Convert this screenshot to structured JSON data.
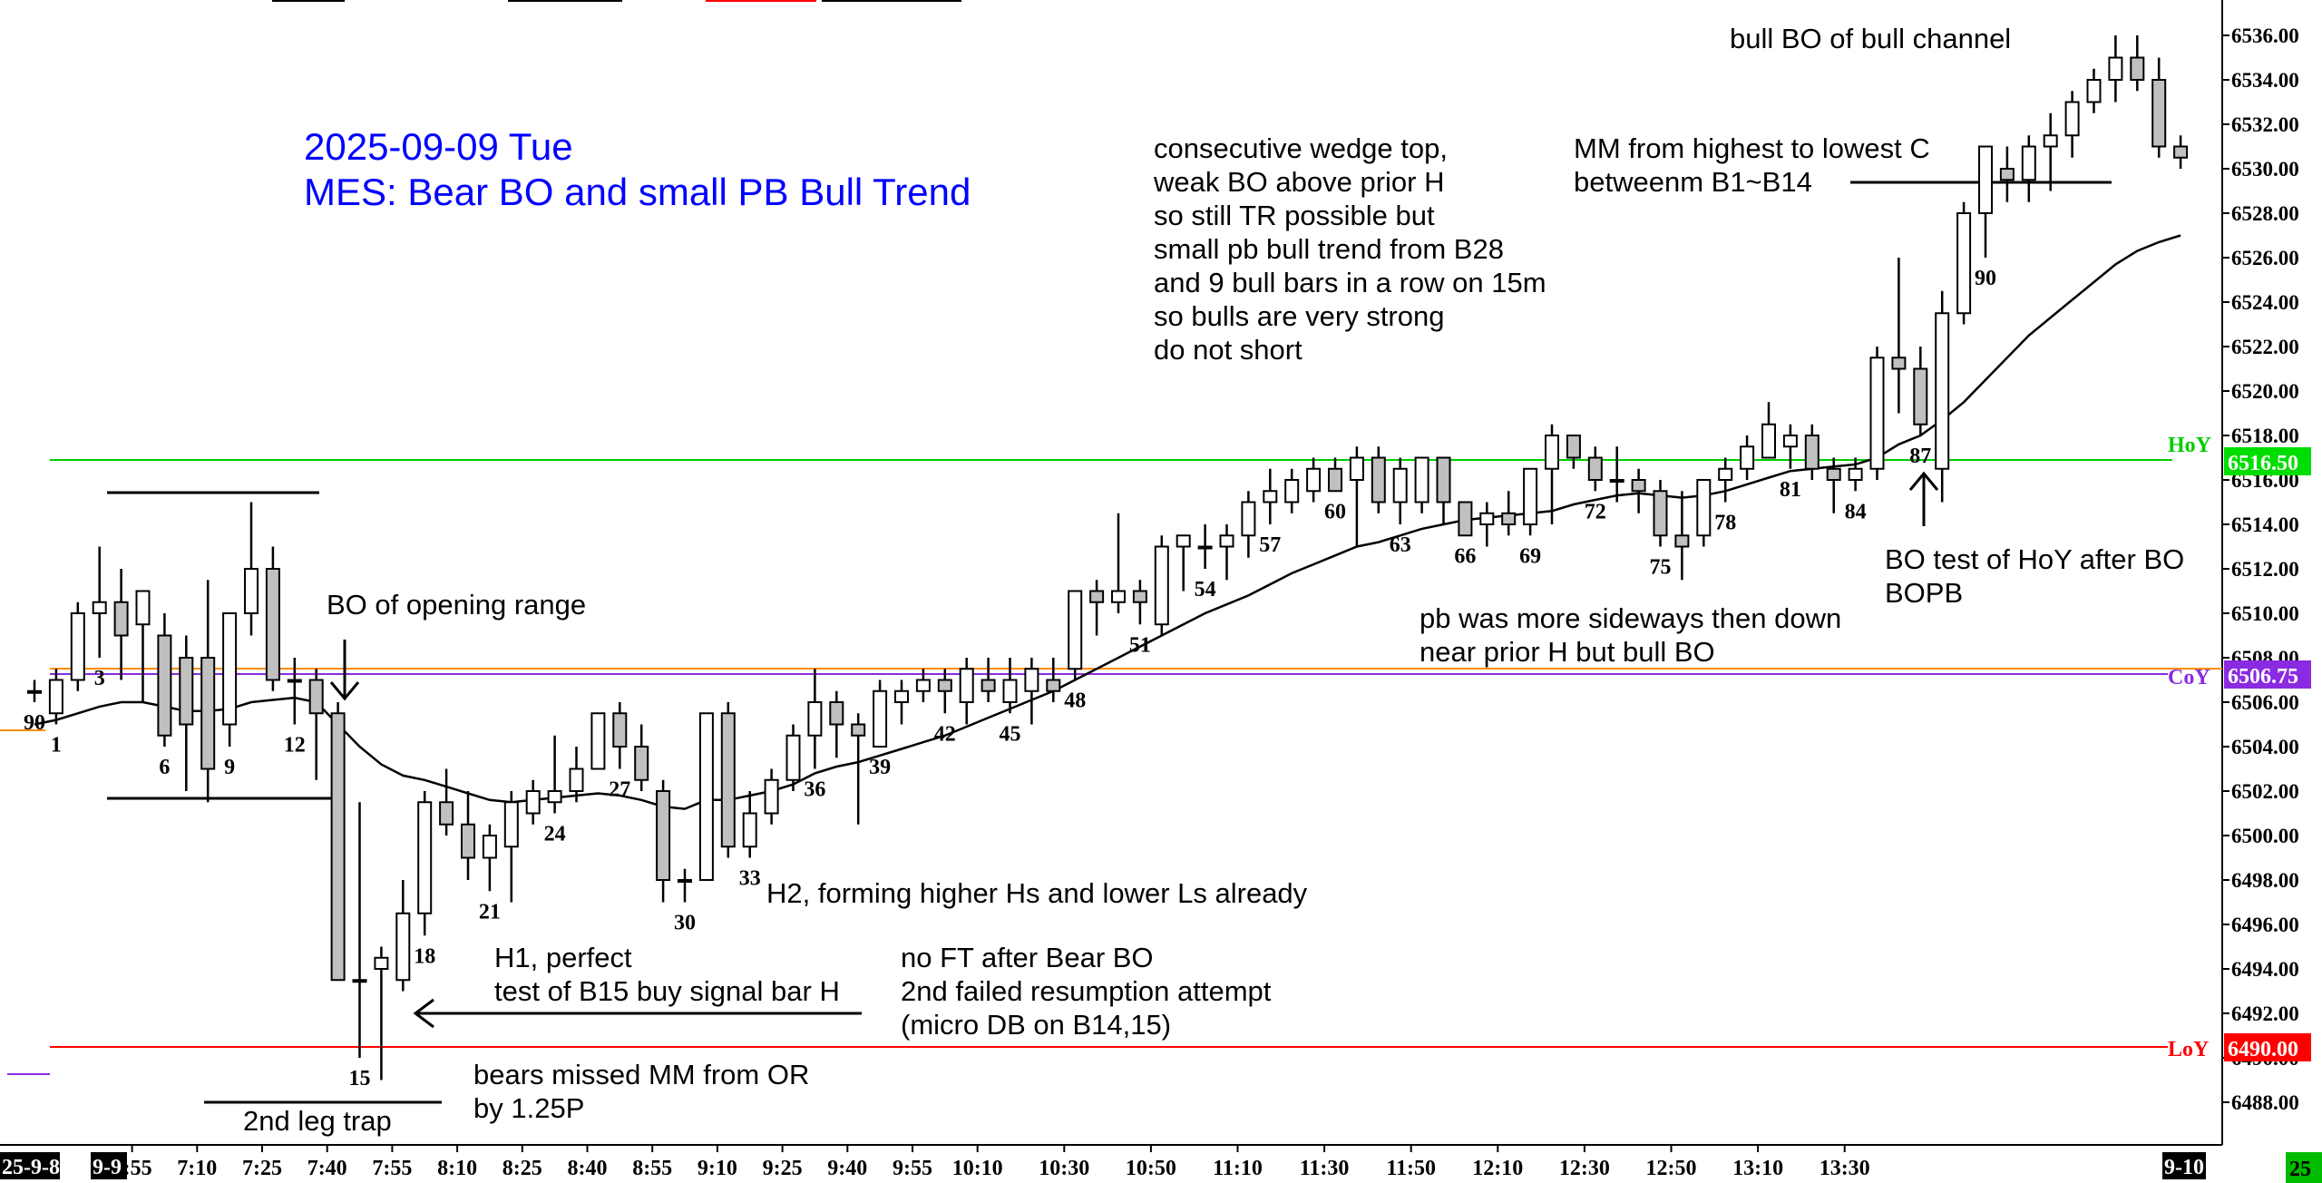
{
  "title": {
    "line1": "2025-09-09 Tue",
    "line2": "MES: Bear BO and small PB Bull Trend"
  },
  "colors": {
    "title": "#0000ff",
    "hoy": "#00cc00",
    "coy": "#8a2be2",
    "loy": "#ff0000",
    "orange_line": "#ff8c00",
    "bear_body": "#c0c0c0",
    "bull_body": "#ffffff",
    "ema": "#000000"
  },
  "annotations": {
    "bo_opening_range": "BO of opening range",
    "second_leg_trap": "2nd leg trap",
    "bears_missed_1": "bears missed MM from OR",
    "bears_missed_2": "by 1.25P",
    "h1_1": "H1, perfect",
    "h1_2": "test of B15 buy signal bar H",
    "h2": "H2, forming higher Hs and lower Ls already",
    "noft_1": "no FT after Bear BO",
    "noft_2": "2nd failed resumption attempt",
    "noft_3": "(micro DB on B14,15)",
    "wedge_1": "consecutive wedge top,",
    "wedge_2": "weak BO above prior H",
    "wedge_3": "so still TR possible but",
    "wedge_4": "small pb bull trend from B28",
    "wedge_5": "and 9 bull bars in a row on 15m",
    "wedge_6": "so bulls are very strong",
    "wedge_7": "do not short",
    "pb_1": "pb was more sideways then down",
    "pb_2": "near prior H but bull BO",
    "mm_1": "MM from highest to lowest C",
    "mm_2": "betweenm B1~B14",
    "bull_bo": "bull BO of bull channel",
    "bo_test_1": "BO test of HoY after BO",
    "bo_test_2": "BOPB"
  },
  "levels": {
    "hoy": {
      "label": "HoY",
      "value": "6516.50"
    },
    "coy": {
      "label": "CoY",
      "value": "6506.75"
    },
    "loy": {
      "label": "LoY",
      "value": "6490.00"
    }
  },
  "bottom_tags": {
    "left_date": "25-9-8",
    "day": "9-9",
    "right_date": "9-10",
    "corner": "25"
  },
  "chart_data": {
    "type": "candlestick",
    "ylim": [
      6486,
      6537
    ],
    "y_ticks": [
      "6488.00",
      "6490.00",
      "6492.00",
      "6494.00",
      "6496.00",
      "6498.00",
      "6500.00",
      "6502.00",
      "6504.00",
      "6506.00",
      "6508.00",
      "6510.00",
      "6512.00",
      "6514.00",
      "6516.00",
      "6518.00",
      "6520.00",
      "6522.00",
      "6524.00",
      "6526.00",
      "6528.00",
      "6530.00",
      "6532.00",
      "6534.00",
      "6536.00"
    ],
    "x_ticks": [
      {
        "bar": 4,
        "label": "6:55"
      },
      {
        "bar": 7,
        "label": "7:10"
      },
      {
        "bar": 10,
        "label": "7:25"
      },
      {
        "bar": 13,
        "label": "7:40"
      },
      {
        "bar": 16,
        "label": "7:55"
      },
      {
        "bar": 19,
        "label": "8:10"
      },
      {
        "bar": 22,
        "label": "8:25"
      },
      {
        "bar": 25,
        "label": "8:40"
      },
      {
        "bar": 28,
        "label": "8:55"
      },
      {
        "bar": 31,
        "label": "9:10"
      },
      {
        "bar": 34,
        "label": "9:25"
      },
      {
        "bar": 37,
        "label": "9:40"
      },
      {
        "bar": 40,
        "label": "9:55"
      },
      {
        "bar": 43,
        "label": "10:10"
      },
      {
        "bar": 47,
        "label": "10:30"
      },
      {
        "bar": 51,
        "label": "10:50"
      },
      {
        "bar": 55,
        "label": "11:10"
      },
      {
        "bar": 59,
        "label": "11:30"
      },
      {
        "bar": 63,
        "label": "11:50"
      },
      {
        "bar": 67,
        "label": "12:10"
      },
      {
        "bar": 71,
        "label": "12:30"
      },
      {
        "bar": 75,
        "label": "12:50"
      },
      {
        "bar": 79,
        "label": "13:10"
      },
      {
        "bar": 83,
        "label": "13:30"
      }
    ],
    "bar_labels": [
      {
        "bar": 0,
        "label": "90"
      },
      {
        "bar": 1,
        "label": "1"
      },
      {
        "bar": 3,
        "label": "3"
      },
      {
        "bar": 6,
        "label": "6"
      },
      {
        "bar": 9,
        "label": "9"
      },
      {
        "bar": 12,
        "label": "12"
      },
      {
        "bar": 15,
        "label": "15"
      },
      {
        "bar": 18,
        "label": "18"
      },
      {
        "bar": 21,
        "label": "21"
      },
      {
        "bar": 24,
        "label": "24"
      },
      {
        "bar": 27,
        "label": "27"
      },
      {
        "bar": 30,
        "label": "30"
      },
      {
        "bar": 33,
        "label": "33"
      },
      {
        "bar": 36,
        "label": "36"
      },
      {
        "bar": 39,
        "label": "39"
      },
      {
        "bar": 42,
        "label": "42"
      },
      {
        "bar": 45,
        "label": "45"
      },
      {
        "bar": 48,
        "label": "48"
      },
      {
        "bar": 51,
        "label": "51"
      },
      {
        "bar": 54,
        "label": "54"
      },
      {
        "bar": 57,
        "label": "57"
      },
      {
        "bar": 60,
        "label": "60"
      },
      {
        "bar": 63,
        "label": "63"
      },
      {
        "bar": 66,
        "label": "66"
      },
      {
        "bar": 69,
        "label": "69"
      },
      {
        "bar": 72,
        "label": "72"
      },
      {
        "bar": 75,
        "label": "75"
      },
      {
        "bar": 78,
        "label": "78"
      },
      {
        "bar": 81,
        "label": "81"
      },
      {
        "bar": 84,
        "label": "84"
      },
      {
        "bar": 87,
        "label": "87"
      },
      {
        "bar": 90,
        "label": "90"
      }
    ],
    "ohlc": [
      [
        6506.5,
        6507.0,
        6506.0,
        6506.5
      ],
      [
        6505.5,
        6507.5,
        6505.0,
        6507.0
      ],
      [
        6507.0,
        6510.5,
        6506.5,
        6510.0
      ],
      [
        6510.0,
        6513.0,
        6508.0,
        6510.5
      ],
      [
        6510.5,
        6512.0,
        6507.0,
        6509.0
      ],
      [
        6509.5,
        6511.0,
        6506.0,
        6511.0
      ],
      [
        6509.0,
        6510.0,
        6504.0,
        6504.5
      ],
      [
        6508.0,
        6509.0,
        6502.0,
        6505.0
      ],
      [
        6508.0,
        6511.5,
        6501.5,
        6503.0
      ],
      [
        6505.0,
        6510.0,
        6504.0,
        6510.0
      ],
      [
        6510.0,
        6515.0,
        6509.0,
        6512.0
      ],
      [
        6512.0,
        6513.0,
        6506.5,
        6507.0
      ],
      [
        6507.0,
        6508.0,
        6505.0,
        6507.0
      ],
      [
        6507.0,
        6507.5,
        6502.5,
        6505.5
      ],
      [
        6505.5,
        6506.0,
        6493.5,
        6493.5
      ],
      [
        6493.5,
        6501.5,
        6490.0,
        6493.5
      ],
      [
        6494.0,
        6495.0,
        6489.0,
        6494.5
      ],
      [
        6493.5,
        6498.0,
        6493.0,
        6496.5
      ],
      [
        6496.5,
        6502.0,
        6495.5,
        6501.5
      ],
      [
        6501.5,
        6503.0,
        6500.0,
        6500.5
      ],
      [
        6500.5,
        6502.0,
        6498.0,
        6499.0
      ],
      [
        6499.0,
        6500.5,
        6497.5,
        6500.0
      ],
      [
        6499.5,
        6502.0,
        6497.0,
        6501.5
      ],
      [
        6501.0,
        6502.5,
        6500.5,
        6502.0
      ],
      [
        6501.5,
        6504.5,
        6501.0,
        6502.0
      ],
      [
        6502.0,
        6504.0,
        6501.5,
        6503.0
      ],
      [
        6503.0,
        6505.5,
        6503.0,
        6505.5
      ],
      [
        6505.5,
        6506.0,
        6503.0,
        6504.0
      ],
      [
        6504.0,
        6505.0,
        6502.0,
        6502.5
      ],
      [
        6502.0,
        6502.5,
        6497.0,
        6498.0
      ],
      [
        6498.0,
        6498.5,
        6497.0,
        6498.0
      ],
      [
        6498.0,
        6505.5,
        6498.0,
        6505.5
      ],
      [
        6505.5,
        6506.0,
        6499.0,
        6499.5
      ],
      [
        6499.5,
        6502.0,
        6499.0,
        6501.0
      ],
      [
        6501.0,
        6503.0,
        6500.5,
        6502.5
      ],
      [
        6502.5,
        6505.0,
        6502.0,
        6504.5
      ],
      [
        6504.5,
        6507.5,
        6503.0,
        6506.0
      ],
      [
        6506.0,
        6506.5,
        6503.5,
        6505.0
      ],
      [
        6505.0,
        6505.5,
        6500.5,
        6504.5
      ],
      [
        6504.0,
        6507.0,
        6504.0,
        6506.5
      ],
      [
        6506.0,
        6507.0,
        6505.0,
        6506.5
      ],
      [
        6506.5,
        6507.5,
        6506.0,
        6507.0
      ],
      [
        6507.0,
        6507.5,
        6505.5,
        6506.5
      ],
      [
        6506.0,
        6508.0,
        6505.0,
        6507.5
      ],
      [
        6507.0,
        6508.0,
        6506.0,
        6506.5
      ],
      [
        6506.0,
        6508.0,
        6505.5,
        6507.0
      ],
      [
        6506.5,
        6508.0,
        6505.0,
        6507.5
      ],
      [
        6507.0,
        6508.0,
        6506.0,
        6506.5
      ],
      [
        6507.5,
        6511.0,
        6507.0,
        6511.0
      ],
      [
        6511.0,
        6511.5,
        6509.0,
        6510.5
      ],
      [
        6510.5,
        6514.5,
        6510.0,
        6511.0
      ],
      [
        6511.0,
        6511.5,
        6509.5,
        6510.5
      ],
      [
        6509.5,
        6513.5,
        6509.0,
        6513.0
      ],
      [
        6513.0,
        6513.5,
        6511.0,
        6513.5
      ],
      [
        6513.0,
        6514.0,
        6512.0,
        6513.0
      ],
      [
        6513.0,
        6514.0,
        6511.5,
        6513.5
      ],
      [
        6513.5,
        6515.5,
        6512.5,
        6515.0
      ],
      [
        6515.0,
        6516.5,
        6514.0,
        6515.5
      ],
      [
        6515.0,
        6516.5,
        6514.5,
        6516.0
      ],
      [
        6515.5,
        6517.0,
        6515.0,
        6516.5
      ],
      [
        6516.5,
        6517.0,
        6515.5,
        6515.5
      ],
      [
        6516.0,
        6517.5,
        6513.0,
        6517.0
      ],
      [
        6517.0,
        6517.5,
        6514.5,
        6515.0
      ],
      [
        6515.0,
        6517.0,
        6514.0,
        6516.5
      ],
      [
        6515.0,
        6517.0,
        6514.5,
        6517.0
      ],
      [
        6517.0,
        6517.0,
        6514.0,
        6515.0
      ],
      [
        6515.0,
        6515.0,
        6513.5,
        6513.5
      ],
      [
        6514.0,
        6515.0,
        6513.0,
        6514.5
      ],
      [
        6514.5,
        6515.5,
        6513.5,
        6514.0
      ],
      [
        6514.0,
        6516.5,
        6513.5,
        6516.5
      ],
      [
        6516.5,
        6518.5,
        6514.0,
        6518.0
      ],
      [
        6518.0,
        6518.0,
        6516.5,
        6517.0
      ],
      [
        6517.0,
        6517.5,
        6515.5,
        6516.0
      ],
      [
        6516.0,
        6517.5,
        6515.0,
        6516.0
      ],
      [
        6516.0,
        6516.5,
        6514.5,
        6515.5
      ],
      [
        6515.5,
        6516.0,
        6513.0,
        6513.5
      ],
      [
        6513.5,
        6515.5,
        6511.5,
        6513.0
      ],
      [
        6513.5,
        6516.0,
        6513.0,
        6516.0
      ],
      [
        6516.0,
        6517.0,
        6515.0,
        6516.5
      ],
      [
        6516.5,
        6518.0,
        6516.0,
        6517.5
      ],
      [
        6517.0,
        6519.5,
        6517.0,
        6518.5
      ],
      [
        6517.5,
        6518.5,
        6516.5,
        6518.0
      ],
      [
        6518.0,
        6518.5,
        6516.0,
        6516.5
      ],
      [
        6516.5,
        6517.0,
        6514.5,
        6516.0
      ],
      [
        6516.0,
        6517.0,
        6515.5,
        6516.5
      ],
      [
        6516.5,
        6522.0,
        6516.0,
        6521.5
      ],
      [
        6521.5,
        6526.0,
        6519.0,
        6521.0
      ],
      [
        6521.0,
        6522.0,
        6518.0,
        6518.5
      ],
      [
        6516.5,
        6524.5,
        6515.0,
        6523.5
      ],
      [
        6523.5,
        6528.5,
        6523.0,
        6528.0
      ],
      [
        6528.0,
        6531.0,
        6526.0,
        6531.0
      ],
      [
        6530.0,
        6531.0,
        6528.5,
        6529.5
      ],
      [
        6529.5,
        6531.5,
        6528.5,
        6531.0
      ],
      [
        6531.0,
        6532.5,
        6529.0,
        6531.5
      ],
      [
        6531.5,
        6533.5,
        6530.5,
        6533.0
      ],
      [
        6533.0,
        6534.5,
        6532.5,
        6534.0
      ],
      [
        6534.0,
        6536.0,
        6533.0,
        6535.0
      ],
      [
        6535.0,
        6536.0,
        6533.5,
        6534.0
      ],
      [
        6534.0,
        6535.0,
        6530.5,
        6531.0
      ],
      [
        6531.0,
        6531.5,
        6530.0,
        6530.5
      ]
    ],
    "ema": [
      6505.0,
      6505.2,
      6505.5,
      6505.8,
      6506.0,
      6506.0,
      6505.8,
      6505.6,
      6505.6,
      6505.7,
      6506.0,
      6506.1,
      6506.2,
      6506.0,
      6505.0,
      6504.0,
      6503.2,
      6502.7,
      6502.5,
      6502.2,
      6501.9,
      6501.6,
      6501.5,
      6501.6,
      6501.7,
      6501.8,
      6501.9,
      6501.8,
      6501.6,
      6501.3,
      6501.2,
      6501.6,
      6501.6,
      6501.8,
      6502.0,
      6502.3,
      6502.8,
      6503.1,
      6503.3,
      6503.6,
      6503.9,
      6504.2,
      6504.5,
      6504.9,
      6505.3,
      6505.7,
      6506.1,
      6506.5,
      6507.0,
      6507.5,
      6508.0,
      6508.5,
      6509.0,
      6509.5,
      6510.0,
      6510.4,
      6510.8,
      6511.3,
      6511.8,
      6512.2,
      6512.6,
      6513.0,
      6513.2,
      6513.5,
      6513.8,
      6514.0,
      6514.2,
      6514.3,
      6514.4,
      6514.5,
      6514.6,
      6514.9,
      6515.1,
      6515.3,
      6515.4,
      6515.3,
      6515.2,
      6515.3,
      6515.5,
      6515.8,
      6516.1,
      6516.4,
      6516.5,
      6516.6,
      6516.7,
      6517.0,
      6517.6,
      6518.0,
      6518.7,
      6519.5,
      6520.5,
      6521.5,
      6522.5,
      6523.3,
      6524.1,
      6524.9,
      6525.7,
      6526.3,
      6526.7,
      6527.0
    ]
  }
}
